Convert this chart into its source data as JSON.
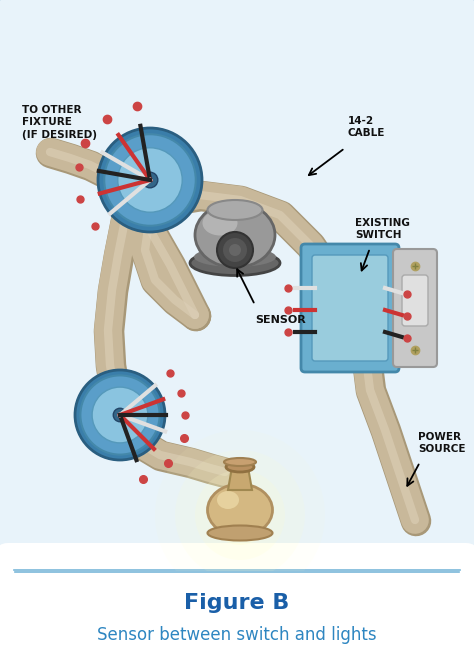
{
  "title": "Figure B",
  "subtitle": "Sensor between switch and lights",
  "title_color": "#1a5fa8",
  "subtitle_color": "#2e86c1",
  "bg_color": "#e8f3fa",
  "bg_color_bottom": "#ffffff",
  "border_color": "#7ab8d9",
  "outer_bg": "#ffffff",
  "labels": {
    "to_other_fixture": "TO OTHER\nFIXTURE\n(IF DESIRED)",
    "cable": "14-2\nCABLE",
    "sensor": "SENSOR",
    "existing_switch": "EXISTING\nSWITCH",
    "power_source": "POWER\nSOURCE"
  },
  "label_color": "#111111",
  "cable_color": "#c8b89a",
  "cable_shadow": "#a89878",
  "cable_highlight": "#ddd0b8",
  "junction_box_color": "#5a9ec9",
  "junction_box_rim": "#3a7eaa",
  "junction_box_inner": "#8ac4e0",
  "sensor_base_color": "#7a7a7a",
  "sensor_body_color": "#999999",
  "sensor_body_light": "#bbbbbb",
  "sensor_eye_color": "#333333",
  "switch_box_color": "#6aafcf",
  "switch_box_inner": "#99ccdd",
  "switch_plate_color": "#c0c0c0",
  "switch_toggle_color": "#dddddd",
  "light_tan": "#c8a87a",
  "light_tan2": "#e0c090",
  "light_glow1": "#ffffcc",
  "light_glow2": "#ffff88",
  "wire_white": "#e0e0e0",
  "wire_red": "#cc3333",
  "wire_black": "#222222",
  "wire_end": "#cc4444",
  "figsize": [
    4.74,
    6.67
  ],
  "dpi": 100
}
